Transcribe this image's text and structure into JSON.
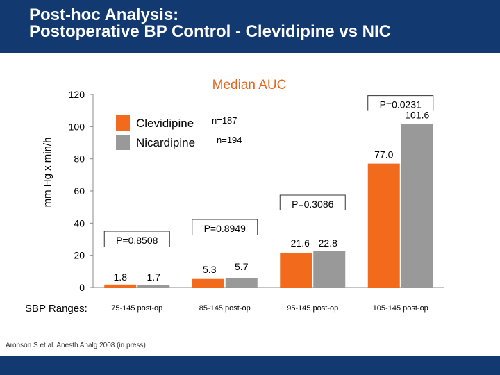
{
  "header": {
    "title_line1": "Post-hoc Analysis:",
    "title_line2": "Postoperative BP Control - Clevidipine vs NIC"
  },
  "colors": {
    "header_bg": "#123a70",
    "clevidipine": "#f26b1d",
    "nicardipine": "#999999"
  },
  "chart_data": {
    "type": "bar",
    "title": "Median AUC",
    "ylabel": "mm Hg x min/h",
    "xlabel": "SBP Ranges:",
    "ylim": [
      0,
      120
    ],
    "yticks": [
      0,
      20,
      40,
      60,
      80,
      100,
      120
    ],
    "categories": [
      "75-145 post-op",
      "85-145 post-op",
      "95-145 post-op",
      "105-145 post-op"
    ],
    "series": [
      {
        "name": "Clevidipine",
        "n": "n=187",
        "values": [
          1.8,
          5.3,
          21.6,
          77.0
        ],
        "labels": [
          "1.8",
          "5.3",
          "21.6",
          "77.0"
        ]
      },
      {
        "name": "Nicardipine",
        "n": "n=194",
        "values": [
          1.7,
          5.7,
          22.8,
          101.6
        ],
        "labels": [
          "1.7",
          "5.7",
          "22.8",
          "101.6"
        ]
      }
    ],
    "p_values": [
      "P=0.8508",
      "P=0.8949",
      "P=0.3086",
      "P=0.0231"
    ]
  },
  "citation": "Aronson S et al. Anesth Analg 2008 (in press)"
}
